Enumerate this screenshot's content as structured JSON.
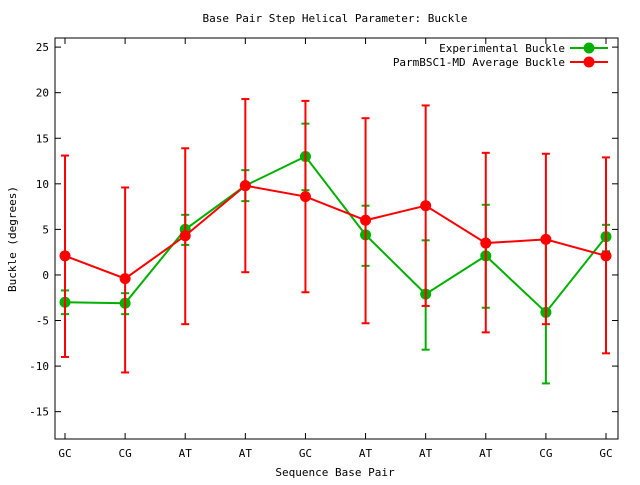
{
  "chart_data": {
    "type": "line",
    "title": "Base Pair Step Helical Parameter: Buckle",
    "xlabel": "Sequence Base Pair",
    "ylabel": "Buckle (degrees)",
    "categories": [
      "GC",
      "CG",
      "AT",
      "AT",
      "GC",
      "AT",
      "AT",
      "AT",
      "CG",
      "GC"
    ],
    "ylim": [
      -18,
      26
    ],
    "yticks": [
      -15,
      -10,
      -5,
      0,
      5,
      10,
      15,
      20,
      25
    ],
    "ytick_labels": [
      "-15",
      "-10",
      "-5",
      "0",
      "5",
      "10",
      "15",
      "20",
      "25"
    ],
    "grid": false,
    "legend_position": "top-right",
    "series": [
      {
        "name": "Experimental Buckle",
        "color": "#00b000",
        "values": [
          -3.0,
          -3.1,
          5.0,
          9.8,
          13.0,
          4.4,
          -2.1,
          2.1,
          -4.1,
          4.2
        ],
        "err_low": [
          -4.3,
          -4.3,
          3.3,
          8.1,
          9.3,
          1.0,
          -8.2,
          -3.6,
          -11.9,
          2.6
        ],
        "err_high": [
          -1.7,
          -2.0,
          6.6,
          11.5,
          16.6,
          7.6,
          3.8,
          7.7,
          3.7,
          5.5
        ]
      },
      {
        "name": "ParmBSC1-MD Average Buckle",
        "color": "#ff0000",
        "values": [
          2.1,
          -0.4,
          4.3,
          9.8,
          8.6,
          6.0,
          7.6,
          3.5,
          3.9,
          2.1
        ],
        "err_low": [
          -9.0,
          -10.7,
          -5.4,
          0.3,
          -1.9,
          -5.3,
          -3.4,
          -6.3,
          -5.4,
          -8.6
        ],
        "err_high": [
          13.1,
          9.6,
          13.9,
          19.3,
          19.1,
          17.2,
          18.6,
          13.4,
          13.3,
          12.9
        ]
      }
    ]
  }
}
